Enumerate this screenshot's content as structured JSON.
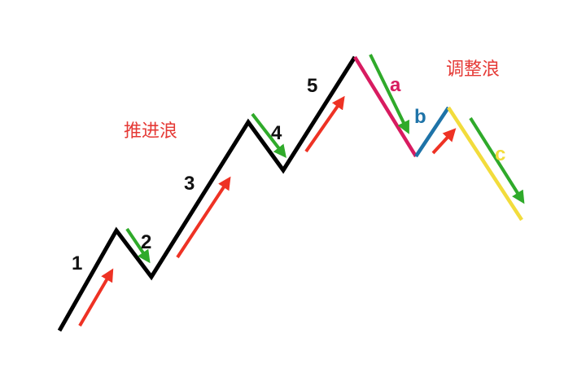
{
  "labels": {
    "impulse": "推进浪",
    "corrective": "调整浪"
  },
  "waves": {
    "w1": "1",
    "w2": "2",
    "w3": "3",
    "w4": "4",
    "w5": "5",
    "wa": "a",
    "wb": "b",
    "wc": "c"
  },
  "colors": {
    "impulse_line": "#000000",
    "wave_a": "#d81b60",
    "wave_b": "#1e73a8",
    "wave_c": "#f2dc3c",
    "arrow_up": "#ee3224",
    "arrow_down": "#2faa2a",
    "label_text": "#e53935"
  }
}
